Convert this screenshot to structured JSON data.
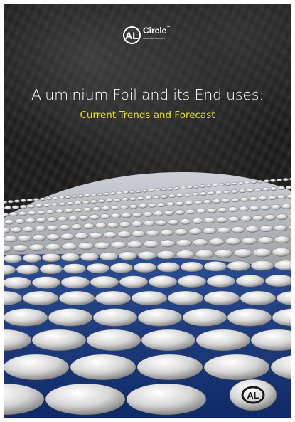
{
  "logo": {
    "mark": "AL",
    "brand": "Circle",
    "tm": "™",
    "url": "www.alcircle.com"
  },
  "title": "Aluminium Foil and its End uses:",
  "subtitle": "Current Trends and Forecast",
  "badge": "AL",
  "colors": {
    "title": "#ffffff",
    "subtitle": "#e6e600",
    "dome_blue": "#1d3f8a",
    "disc": "#d8d8d8"
  }
}
